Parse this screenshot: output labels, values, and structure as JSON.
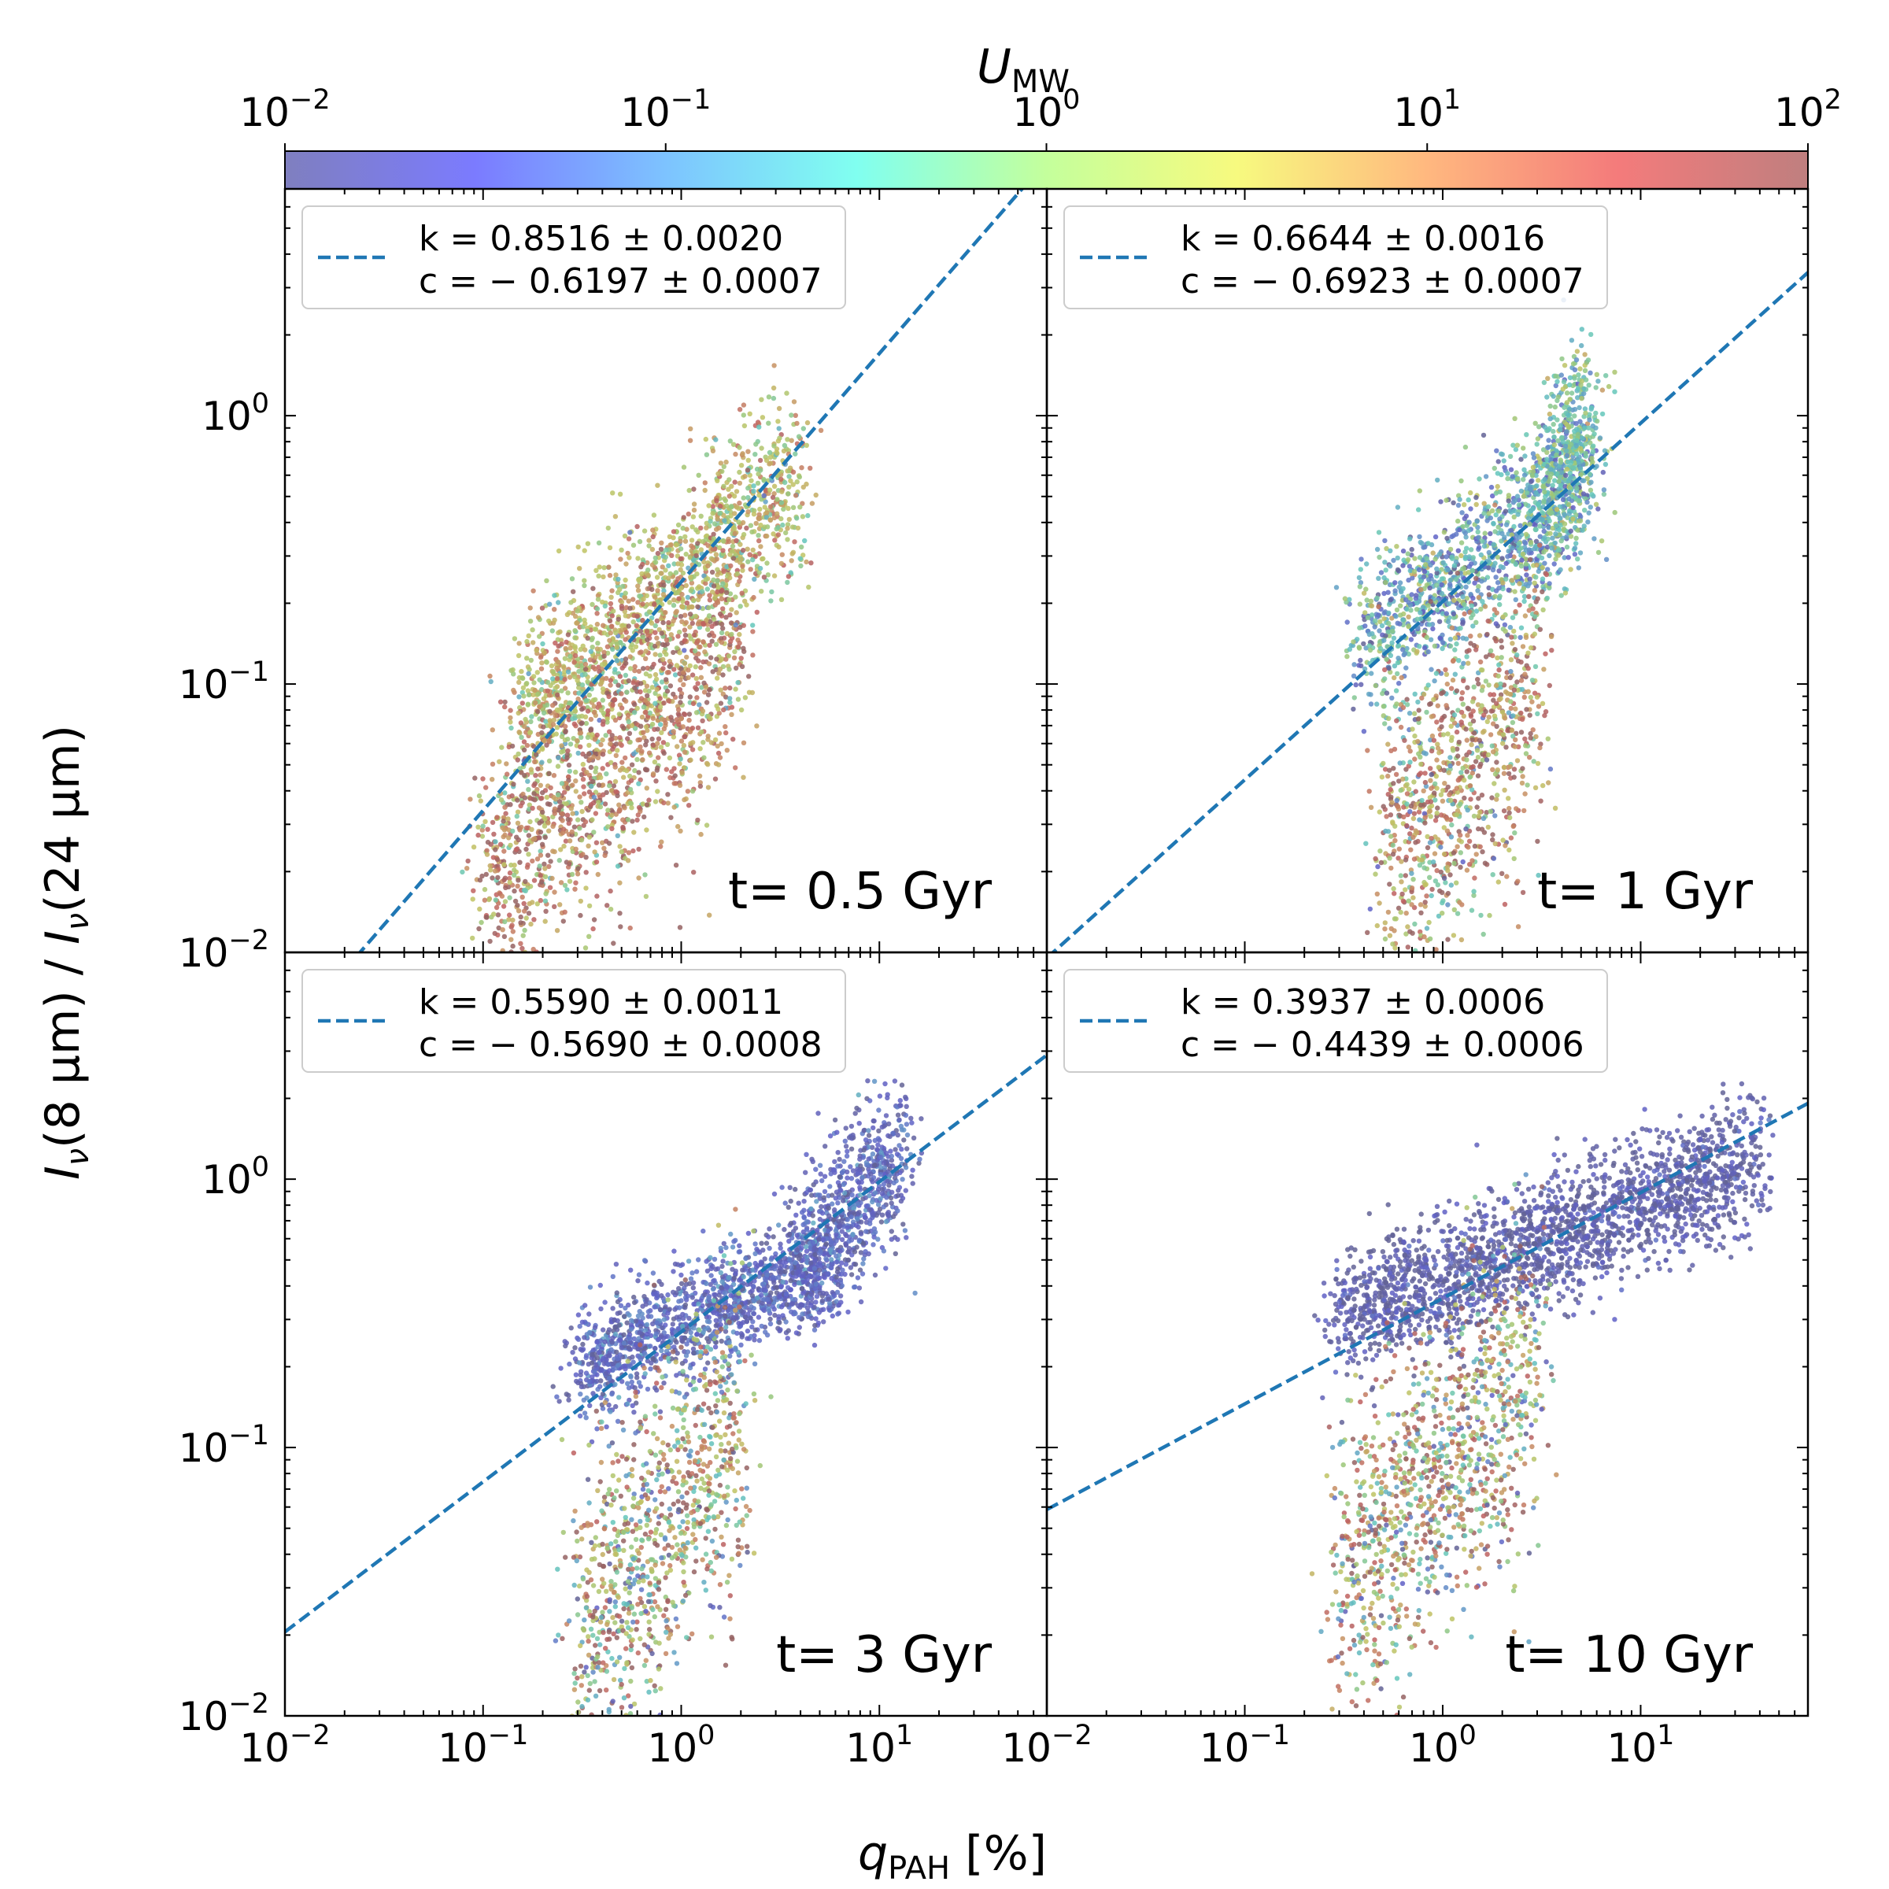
{
  "colorbar": {
    "label_main": "U",
    "label_sub": "MW",
    "scale": "log",
    "range": [
      0.01,
      100
    ],
    "ticks": [
      {
        "base": "10",
        "exp": "−2"
      },
      {
        "base": "10",
        "exp": "−1"
      },
      {
        "base": "10",
        "exp": "0"
      },
      {
        "base": "10",
        "exp": "1"
      },
      {
        "base": "10",
        "exp": "2"
      }
    ],
    "colormap": [
      "#7f7fbf",
      "#7b7bff",
      "#7dc3ff",
      "#80fff0",
      "#c4ff9c",
      "#f7fa7f",
      "#ffb87f",
      "#f47b7b",
      "#bf7f7f"
    ]
  },
  "axes_text": {
    "ylabel_parts": [
      "I",
      "ν",
      "(8 μm) / ",
      "I",
      "ν",
      "(24 μm)"
    ],
    "xlabel_main": "q",
    "xlabel_sub": "PAH",
    "xlabel_tail": " [%]",
    "x_ticks": [
      {
        "base": "10",
        "exp": "−2"
      },
      {
        "base": "10",
        "exp": "−1"
      },
      {
        "base": "10",
        "exp": "0"
      },
      {
        "base": "10",
        "exp": "1"
      }
    ],
    "y_ticks": [
      {
        "base": "10",
        "exp": "−2"
      },
      {
        "base": "10",
        "exp": "−1"
      },
      {
        "base": "10",
        "exp": "0"
      }
    ]
  },
  "chart_data": [
    {
      "type": "scatter",
      "panel": "top-left",
      "time_label": "t= 0.5 Gyr",
      "xscale": "log",
      "yscale": "log",
      "xlim": [
        0.01,
        70
      ],
      "ylim": [
        0.01,
        7
      ],
      "fit": {
        "k": 0.8516,
        "k_err": 0.002,
        "c": -0.6197,
        "c_err": 0.0007,
        "line1": "k = 0.8516 ± 0.0020",
        "line2": "c = − 0.6197 ± 0.0007"
      },
      "clouds": [
        {
          "x_range": [
            0.15,
            4
          ],
          "y_at_xmin": 0.07,
          "y_at_xmax": 0.6,
          "log_scatter": 0.18,
          "u_mode": 3,
          "color_spread": 0.3
        },
        {
          "x_range": [
            0.1,
            2
          ],
          "y_at_xmin": 0.018,
          "y_at_xmax": 0.15,
          "log_scatter": 0.25,
          "u_mode": 15,
          "color_spread": 0.4
        }
      ],
      "legend_position": "upper-left"
    },
    {
      "type": "scatter",
      "panel": "top-right",
      "time_label": "t= 1 Gyr",
      "xscale": "log",
      "yscale": "log",
      "xlim": [
        0.01,
        70
      ],
      "ylim": [
        0.01,
        7
      ],
      "fit": {
        "k": 0.6644,
        "k_err": 0.0016,
        "c": -0.6923,
        "c_err": 0.0007,
        "line1": "k = 0.6644 ± 0.0016",
        "line2": "c = − 0.6923 ± 0.0007"
      },
      "clouds": [
        {
          "x_range": [
            0.4,
            5.5
          ],
          "y_at_xmin": 0.14,
          "y_at_xmax": 0.6,
          "log_scatter": 0.15,
          "u_mode": 0.2,
          "color_spread": 0.35
        },
        {
          "x_range": [
            3,
            5.5
          ],
          "y_at_xmin": 0.4,
          "y_at_xmax": 1.2,
          "log_scatter": 0.15,
          "u_mode": 0.35,
          "color_spread": 0.25
        },
        {
          "x_range": [
            0.5,
            3
          ],
          "y_at_xmin": 0.02,
          "y_at_xmax": 0.1,
          "log_scatter": 0.28,
          "u_mode": 8,
          "color_spread": 0.5
        }
      ],
      "legend_position": "upper-left"
    },
    {
      "type": "scatter",
      "panel": "bottom-left",
      "time_label": "t= 3 Gyr",
      "xscale": "log",
      "yscale": "log",
      "xlim": [
        0.01,
        70
      ],
      "ylim": [
        0.01,
        7
      ],
      "fit": {
        "k": 0.559,
        "k_err": 0.0011,
        "c": -0.569,
        "c_err": 0.0008,
        "line1": "k = 0.5590 ± 0.0011",
        "line2": "c = − 0.5690 ± 0.0008"
      },
      "clouds": [
        {
          "x_range": [
            0.3,
            6
          ],
          "y_at_xmin": 0.2,
          "y_at_xmax": 0.5,
          "log_scatter": 0.1,
          "u_mode": 0.03,
          "color_spread": 0.15
        },
        {
          "x_range": [
            4,
            13
          ],
          "y_at_xmin": 0.5,
          "y_at_xmax": 1.2,
          "log_scatter": 0.15,
          "u_mode": 0.03,
          "color_spread": 0.15
        },
        {
          "x_range": [
            0.3,
            2
          ],
          "y_at_xmin": 0.02,
          "y_at_xmax": 0.12,
          "log_scatter": 0.3,
          "u_mode": 3,
          "color_spread": 0.6
        }
      ],
      "legend_position": "upper-left"
    },
    {
      "type": "scatter",
      "panel": "bottom-right",
      "time_label": "t= 10 Gyr",
      "xscale": "log",
      "yscale": "log",
      "xlim": [
        0.01,
        70
      ],
      "ylim": [
        0.01,
        7
      ],
      "fit": {
        "k": 0.3937,
        "k_err": 0.0006,
        "c": -0.4439,
        "c_err": 0.0006,
        "line1": "k = 0.3937 ± 0.0006",
        "line2": "c = − 0.4439 ± 0.0006"
      },
      "clouds": [
        {
          "x_range": [
            0.3,
            40
          ],
          "y_at_xmin": 0.3,
          "y_at_xmax": 1.2,
          "log_scatter": 0.12,
          "u_mode": 0.015,
          "color_spread": 0.12
        },
        {
          "x_range": [
            0.3,
            3
          ],
          "y_at_xmin": 0.03,
          "y_at_xmax": 0.2,
          "log_scatter": 0.3,
          "u_mode": 3,
          "color_spread": 0.6
        }
      ],
      "legend_position": "upper-left"
    }
  ]
}
